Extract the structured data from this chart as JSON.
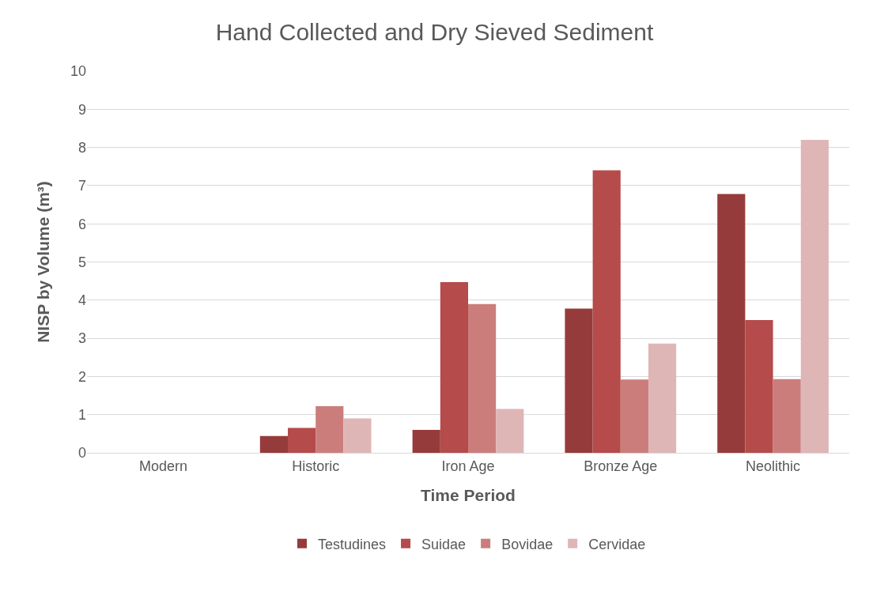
{
  "chart_data": {
    "type": "bar",
    "title": "Hand Collected and Dry Sieved Sediment",
    "xlabel": "Time Period",
    "ylabel": "NISP by Volume (m³)",
    "categories": [
      "Modern",
      "Historic",
      "Iron Age",
      "Bronze Age",
      "Neolithic"
    ],
    "series": [
      {
        "name": "Testudines",
        "color": "#963b3b",
        "values": [
          0,
          0.44,
          0.6,
          3.78,
          6.78
        ]
      },
      {
        "name": "Suidae",
        "color": "#b54b4a",
        "values": [
          0,
          0.65,
          4.47,
          7.4,
          3.48
        ]
      },
      {
        "name": "Bovidae",
        "color": "#cb7d7c",
        "values": [
          0,
          1.22,
          3.9,
          1.92,
          1.93
        ]
      },
      {
        "name": "Cervidae",
        "color": "#dfb6b6",
        "values": [
          0,
          0.9,
          1.15,
          2.86,
          8.2
        ]
      }
    ],
    "ylim": [
      0,
      10
    ],
    "yticks": [
      0,
      1,
      2,
      3,
      4,
      5,
      6,
      7,
      8,
      9,
      10
    ],
    "grid": "y",
    "legend": "bottom"
  }
}
